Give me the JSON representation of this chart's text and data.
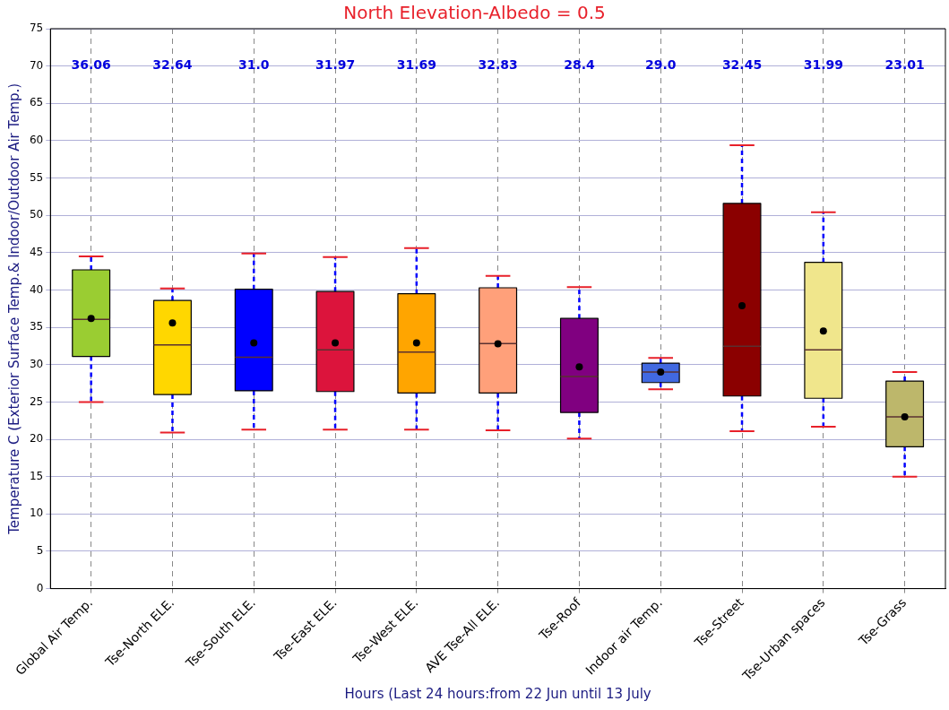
{
  "chart_data": {
    "type": "box",
    "title": "North Elevation-Albedo = 0.5",
    "xlabel": "Hours (Last 24 hours:from 22 Jun until 13 July",
    "ylabel": "Temperature C (Exterior Surface Temp.& Indoor/Outdoor Air Temp.)",
    "categories": [
      "Global Air Temp.",
      "Tse-North ELE.",
      "Tse-South ELE.",
      "Tse-East ELE.",
      "Tse-West ELE.",
      "AVE Tse-All ELE.",
      "Tse-Roof",
      "Indoor air Temp.",
      "Tse-Street",
      "Tse-Urban spaces",
      "Tse-Grass"
    ],
    "colors": [
      "#9acd32",
      "#ffd700",
      "#0000ff",
      "#dc143c",
      "#ffa500",
      "#ffa07a",
      "#800080",
      "#4169e1",
      "#8b0000",
      "#f0e68c",
      "#bdb76b"
    ],
    "boxes": [
      {
        "low": 25.0,
        "q1": 31.1,
        "median": 36.06,
        "q3": 42.7,
        "high": 44.5,
        "mean": 36.2
      },
      {
        "low": 20.9,
        "q1": 26.0,
        "median": 32.64,
        "q3": 38.6,
        "high": 40.2,
        "mean": 35.6
      },
      {
        "low": 21.3,
        "q1": 26.5,
        "median": 31.0,
        "q3": 40.1,
        "high": 44.9,
        "mean": 32.9
      },
      {
        "low": 21.3,
        "q1": 26.4,
        "median": 31.97,
        "q3": 39.8,
        "high": 44.4,
        "mean": 32.9
      },
      {
        "low": 21.3,
        "q1": 26.2,
        "median": 31.69,
        "q3": 39.5,
        "high": 45.6,
        "mean": 32.9
      },
      {
        "low": 21.2,
        "q1": 26.2,
        "median": 32.83,
        "q3": 40.3,
        "high": 41.9,
        "mean": 32.8
      },
      {
        "low": 20.1,
        "q1": 23.6,
        "median": 28.4,
        "q3": 36.2,
        "high": 40.4,
        "mean": 29.7
      },
      {
        "low": 26.7,
        "q1": 27.6,
        "median": 29.0,
        "q3": 30.2,
        "high": 30.9,
        "mean": 29.0
      },
      {
        "low": 21.1,
        "q1": 25.8,
        "median": 32.45,
        "q3": 51.6,
        "high": 59.4,
        "mean": 37.9
      },
      {
        "low": 21.7,
        "q1": 25.5,
        "median": 31.99,
        "q3": 43.7,
        "high": 50.4,
        "mean": 34.5
      },
      {
        "low": 15.0,
        "q1": 19.0,
        "median": 23.01,
        "q3": 27.8,
        "high": 29.0,
        "mean": 23.0
      }
    ],
    "annotations": [
      "36.06",
      "32.64",
      "31.0",
      "31.97",
      "31.69",
      "32.83",
      "28.4",
      "29.0",
      "32.45",
      "31.99",
      "23.01"
    ],
    "ylim": [
      0,
      75
    ],
    "yticks": [
      0,
      5,
      10,
      15,
      20,
      25,
      30,
      35,
      40,
      45,
      50,
      55,
      60,
      65,
      70,
      75
    ],
    "grid": true,
    "legend": false,
    "marker": "circle"
  }
}
